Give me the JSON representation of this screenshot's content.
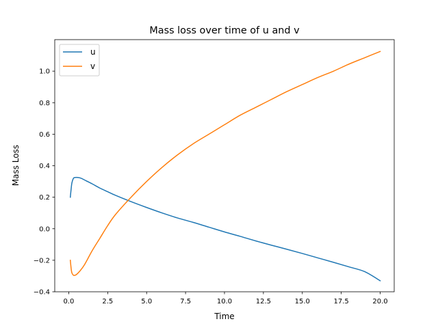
{
  "chart_data": {
    "type": "line",
    "title": "Mass loss over time of u and v",
    "xlabel": "Time",
    "ylabel": "Mass Loss",
    "xlim": [
      -0.9,
      20.9
    ],
    "ylim": [
      -0.4,
      1.2
    ],
    "xticks": [
      0.0,
      2.5,
      5.0,
      7.5,
      10.0,
      12.5,
      15.0,
      17.5,
      20.0
    ],
    "xtick_labels": [
      "0.0",
      "2.5",
      "5.0",
      "7.5",
      "10.0",
      "12.5",
      "15.0",
      "17.5",
      "20.0"
    ],
    "yticks": [
      -0.4,
      -0.2,
      0.0,
      0.2,
      0.4,
      0.6,
      0.8,
      1.0
    ],
    "ytick_labels": [
      "−0.4",
      "−0.2",
      "0.0",
      "0.2",
      "0.4",
      "0.6",
      "0.8",
      "1.0"
    ],
    "grid": false,
    "legend_position": "top-left",
    "series": [
      {
        "name": "u",
        "color": "#1f77b4",
        "x": [
          0.1,
          0.15,
          0.2,
          0.3,
          0.4,
          0.6,
          0.8,
          1.0,
          1.5,
          2.0,
          2.5,
          3.0,
          4.0,
          5.0,
          6.0,
          7.0,
          8.0,
          9.0,
          10.0,
          11.0,
          12.0,
          13.0,
          14.0,
          15.0,
          16.0,
          17.0,
          18.0,
          19.0,
          20.0
        ],
        "y": [
          0.2,
          0.25,
          0.29,
          0.32,
          0.325,
          0.325,
          0.32,
          0.31,
          0.285,
          0.258,
          0.235,
          0.212,
          0.172,
          0.135,
          0.1,
          0.068,
          0.04,
          0.01,
          -0.02,
          -0.048,
          -0.077,
          -0.104,
          -0.13,
          -0.157,
          -0.185,
          -0.213,
          -0.242,
          -0.272,
          -0.33
        ]
      },
      {
        "name": "v",
        "color": "#ff7f0e",
        "x": [
          0.1,
          0.15,
          0.2,
          0.3,
          0.4,
          0.5,
          0.7,
          1.0,
          1.5,
          2.0,
          2.5,
          3.0,
          4.0,
          5.0,
          6.0,
          7.0,
          8.0,
          9.0,
          10.0,
          11.0,
          12.0,
          13.0,
          14.0,
          15.0,
          16.0,
          17.0,
          18.0,
          19.0,
          20.0
        ],
        "y": [
          -0.2,
          -0.25,
          -0.28,
          -0.295,
          -0.295,
          -0.29,
          -0.27,
          -0.23,
          -0.14,
          -0.06,
          0.02,
          0.09,
          0.2,
          0.3,
          0.39,
          0.47,
          0.54,
          0.6,
          0.66,
          0.72,
          0.77,
          0.82,
          0.87,
          0.915,
          0.96,
          1.0,
          1.045,
          1.085,
          1.125
        ]
      }
    ]
  }
}
